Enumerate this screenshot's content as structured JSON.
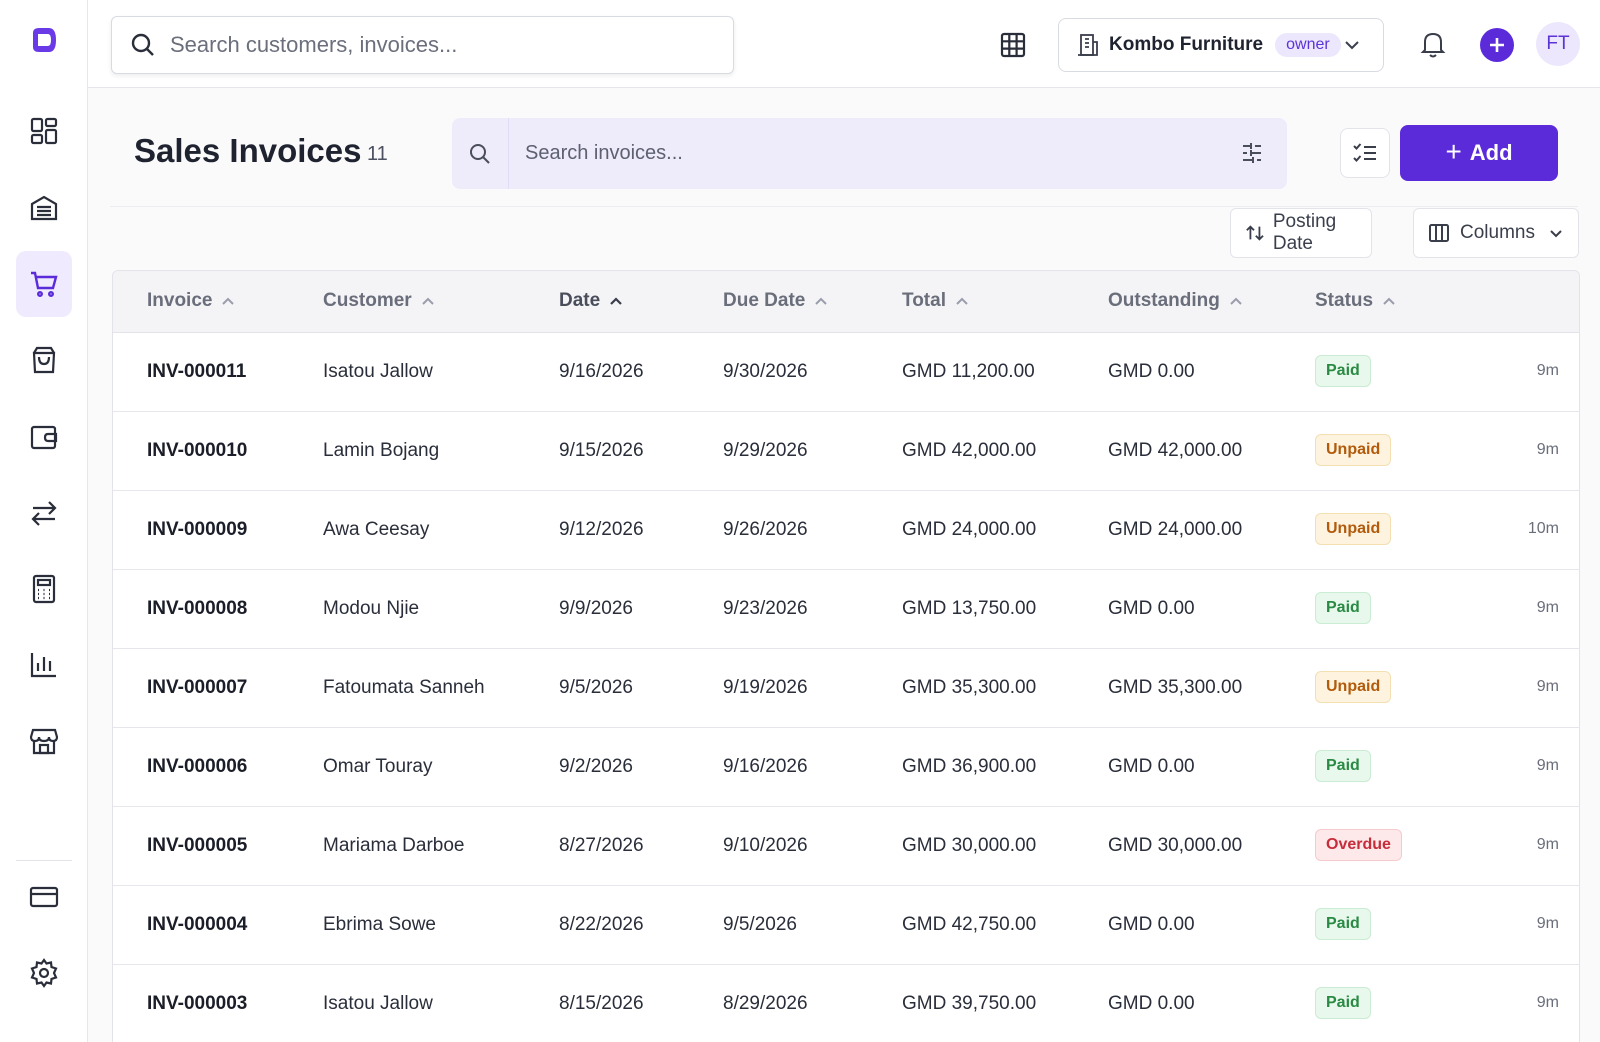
{
  "header": {
    "search_placeholder": "Search customers, invoices...",
    "company_name": "Kombo Furniture",
    "company_role": "owner",
    "avatar_initials": "FT"
  },
  "sidebar": {
    "items": [
      {
        "name": "dashboard",
        "icon": "dashboard-icon",
        "active": false
      },
      {
        "name": "inventory",
        "icon": "warehouse-icon",
        "active": false
      },
      {
        "name": "sales",
        "icon": "shopping-cart-icon",
        "active": true
      },
      {
        "name": "purchases",
        "icon": "shopping-bag-icon",
        "active": false
      },
      {
        "name": "wallet",
        "icon": "wallet-icon",
        "active": false
      },
      {
        "name": "transfers",
        "icon": "transfer-arrows-icon",
        "active": false
      },
      {
        "name": "accounting",
        "icon": "calculator-icon",
        "active": false
      },
      {
        "name": "reports",
        "icon": "bar-chart-icon",
        "active": false
      },
      {
        "name": "store",
        "icon": "store-icon",
        "active": false
      },
      {
        "name": "billing",
        "icon": "credit-card-icon",
        "active": false
      },
      {
        "name": "settings",
        "icon": "gear-icon",
        "active": false
      }
    ]
  },
  "page": {
    "title": "Sales Invoices",
    "count": "11",
    "search_placeholder": "Search invoices...",
    "add_label": "Add",
    "sort_label": "Posting Date",
    "columns_label": "Columns"
  },
  "table": {
    "columns": [
      "Invoice",
      "Customer",
      "Date",
      "Due Date",
      "Total",
      "Outstanding",
      "Status"
    ],
    "rows": [
      {
        "invoice": "INV-000011",
        "customer": "Isatou Jallow",
        "date": "9/16/2026",
        "due": "9/30/2026",
        "total": "GMD 11,200.00",
        "outstanding": "GMD 0.00",
        "status": "Paid",
        "ago": "9m"
      },
      {
        "invoice": "INV-000010",
        "customer": "Lamin Bojang",
        "date": "9/15/2026",
        "due": "9/29/2026",
        "total": "GMD 42,000.00",
        "outstanding": "GMD 42,000.00",
        "status": "Unpaid",
        "ago": "9m"
      },
      {
        "invoice": "INV-000009",
        "customer": "Awa Ceesay",
        "date": "9/12/2026",
        "due": "9/26/2026",
        "total": "GMD 24,000.00",
        "outstanding": "GMD 24,000.00",
        "status": "Unpaid",
        "ago": "10m"
      },
      {
        "invoice": "INV-000008",
        "customer": "Modou Njie",
        "date": "9/9/2026",
        "due": "9/23/2026",
        "total": "GMD 13,750.00",
        "outstanding": "GMD 0.00",
        "status": "Paid",
        "ago": "9m"
      },
      {
        "invoice": "INV-000007",
        "customer": "Fatoumata Sanneh",
        "date": "9/5/2026",
        "due": "9/19/2026",
        "total": "GMD 35,300.00",
        "outstanding": "GMD 35,300.00",
        "status": "Unpaid",
        "ago": "9m"
      },
      {
        "invoice": "INV-000006",
        "customer": "Omar Touray",
        "date": "9/2/2026",
        "due": "9/16/2026",
        "total": "GMD 36,900.00",
        "outstanding": "GMD 0.00",
        "status": "Paid",
        "ago": "9m"
      },
      {
        "invoice": "INV-000005",
        "customer": "Mariama Darboe",
        "date": "8/27/2026",
        "due": "9/10/2026",
        "total": "GMD 30,000.00",
        "outstanding": "GMD 30,000.00",
        "status": "Overdue",
        "ago": "9m"
      },
      {
        "invoice": "INV-000004",
        "customer": "Ebrima Sowe",
        "date": "8/22/2026",
        "due": "9/5/2026",
        "total": "GMD 42,750.00",
        "outstanding": "GMD 0.00",
        "status": "Paid",
        "ago": "9m"
      },
      {
        "invoice": "INV-000003",
        "customer": "Isatou Jallow",
        "date": "8/15/2026",
        "due": "8/29/2026",
        "total": "GMD 39,750.00",
        "outstanding": "GMD 0.00",
        "status": "Paid",
        "ago": "9m"
      }
    ]
  },
  "colors": {
    "accent": "#5b2bd9",
    "accent_light": "#efeafd",
    "paid": "#2a8a44",
    "unpaid": "#b25b0c",
    "overdue": "#c62d3a"
  }
}
